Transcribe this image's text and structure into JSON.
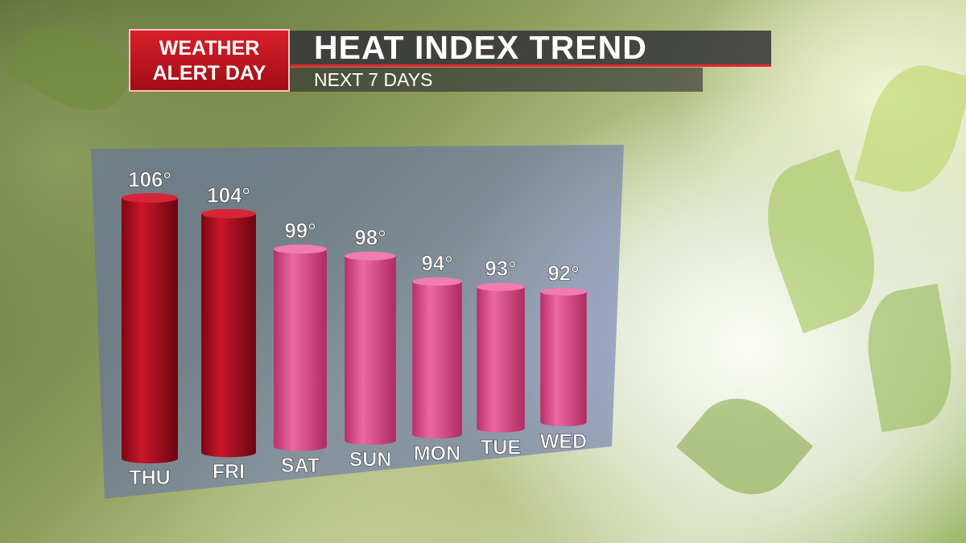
{
  "header": {
    "badge_line1": "WEATHER",
    "badge_line2": "ALERT DAY",
    "title": "HEAT INDEX TREND",
    "subtitle": "NEXT 7 DAYS"
  },
  "chart_data": {
    "type": "bar",
    "title": "HEAT INDEX TREND",
    "subtitle": "NEXT 7 DAYS",
    "categories": [
      "THU",
      "FRI",
      "SAT",
      "SUN",
      "MON",
      "TUE",
      "WED"
    ],
    "values": [
      106,
      104,
      99,
      98,
      94,
      93,
      92
    ],
    "value_labels": [
      "106°",
      "104°",
      "99°",
      "98°",
      "94°",
      "93°",
      "92°"
    ],
    "unit": "°F",
    "colors": {
      "high": "#b3111f",
      "normal": "#e2558f"
    },
    "high_threshold": 100,
    "grid": false,
    "legend": "none"
  }
}
